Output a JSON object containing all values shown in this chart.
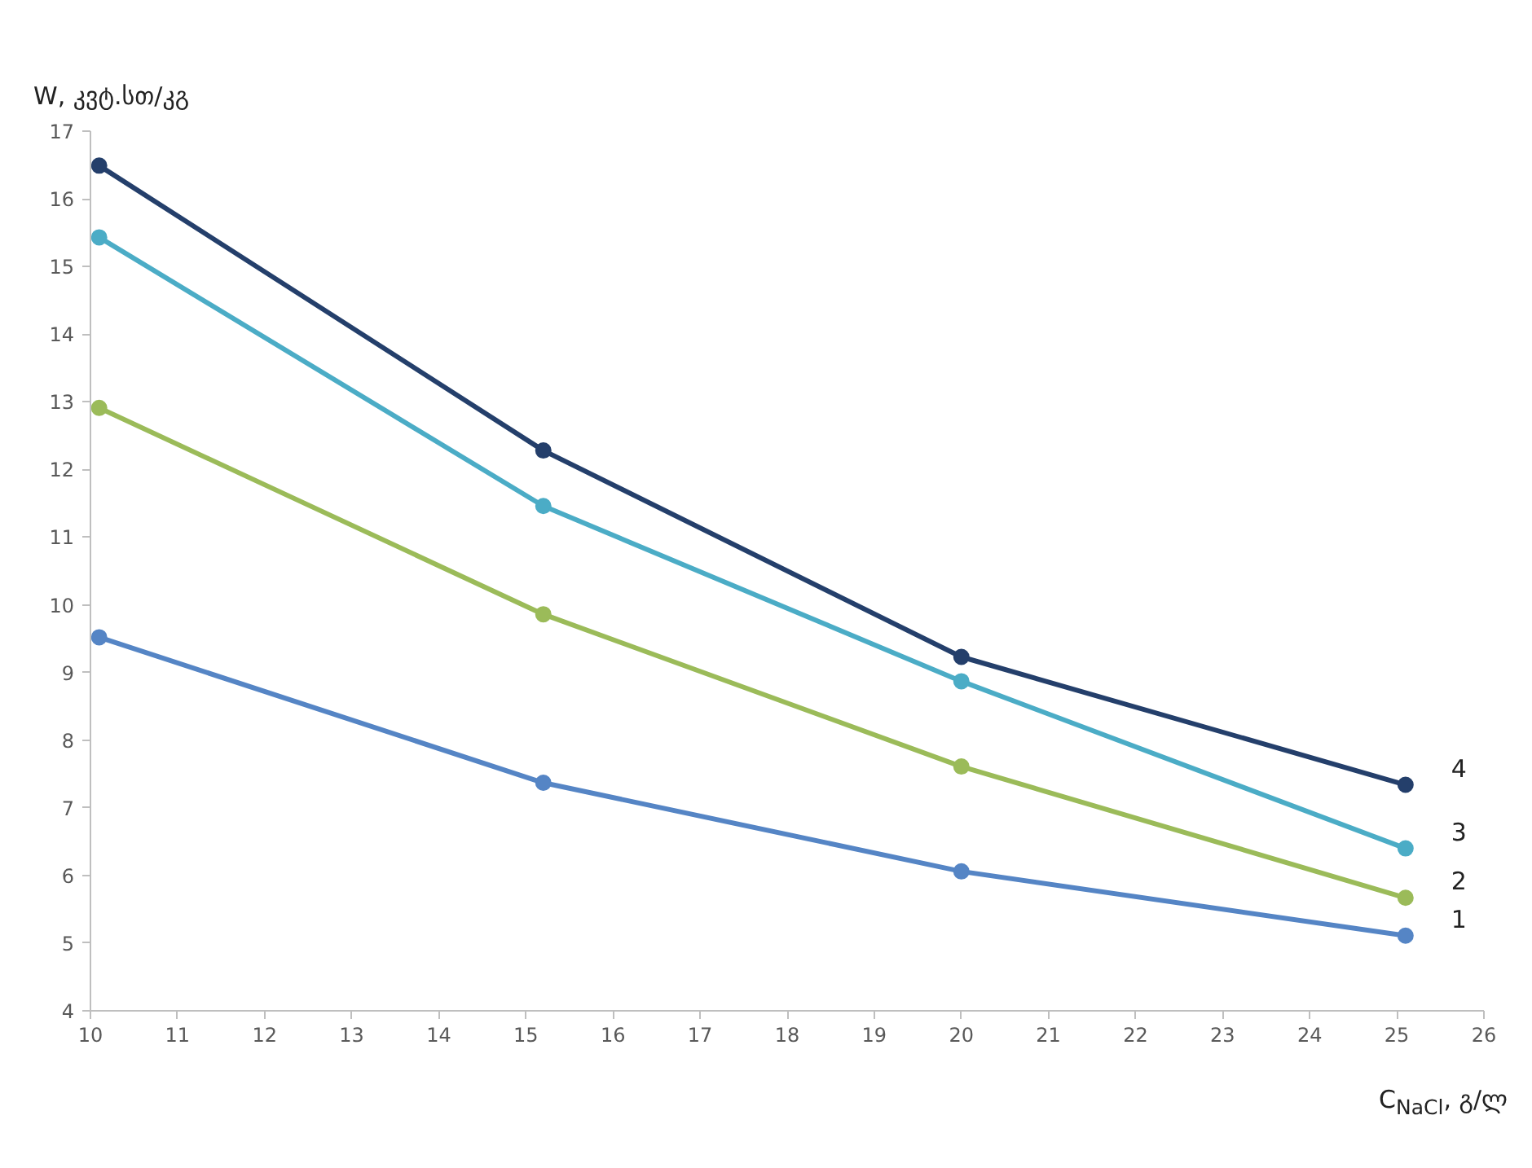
{
  "chart_data": {
    "type": "line",
    "xlabel": "C$_{NaCl}$, გ/ლ",
    "ylabel": "W, კვტ.სთ/კგ",
    "x": [
      10.1,
      15.2,
      20,
      25.1
    ],
    "xlim": [
      10,
      26
    ],
    "xticks": [
      10,
      11,
      12,
      13,
      14,
      15,
      16,
      17,
      18,
      19,
      20,
      21,
      22,
      23,
      24,
      25,
      26
    ],
    "ylim": [
      4,
      17
    ],
    "yticks": [
      4,
      5,
      6,
      7,
      8,
      9,
      10,
      11,
      12,
      13,
      14,
      15,
      16,
      17
    ],
    "grid": false,
    "legend": false,
    "marker": "circle",
    "line_style": "solid",
    "series": [
      {
        "name": "1",
        "color": "#5585c5",
        "values": [
          9.52,
          7.37,
          6.06,
          5.11
        ]
      },
      {
        "name": "2",
        "color": "#9bbb59",
        "values": [
          12.91,
          9.86,
          7.61,
          5.67
        ]
      },
      {
        "name": "3",
        "color": "#4bacc6",
        "values": [
          15.43,
          11.46,
          8.87,
          6.4
        ]
      },
      {
        "name": "4",
        "color": "#243f6b",
        "values": [
          16.49,
          12.28,
          9.23,
          7.34
        ]
      }
    ]
  }
}
